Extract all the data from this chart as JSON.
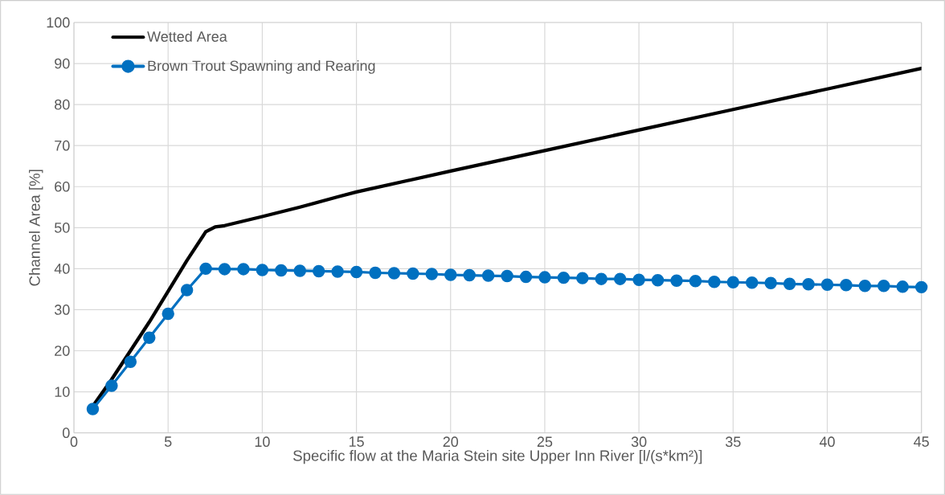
{
  "chart_data": {
    "type": "line",
    "xlabel": "Specific flow at the Maria Stein site Upper Inn River [l/(s*km²)]",
    "ylabel": "Channel Area [%]",
    "xlim": [
      0,
      45
    ],
    "xticks": [
      0,
      5,
      10,
      15,
      20,
      25,
      30,
      35,
      40,
      45
    ],
    "ylim": [
      0,
      100
    ],
    "yticks": [
      0,
      10,
      20,
      30,
      40,
      50,
      60,
      70,
      80,
      90,
      100
    ],
    "grid": true,
    "legend": "top left",
    "line_style": "solid",
    "series": [
      {
        "name": "Wetted Area",
        "color": "#000000",
        "marker": "none",
        "x": [
          1,
          2,
          3,
          4,
          5,
          6,
          7,
          7.5,
          8,
          10,
          12,
          14,
          15,
          20,
          25,
          30,
          35,
          40,
          45
        ],
        "values": [
          6.5,
          13,
          20,
          27,
          34.5,
          42,
          49,
          50.2,
          50.5,
          52.7,
          55,
          57.5,
          58.7,
          63.8,
          68.8,
          73.8,
          78.8,
          83.8,
          88.8
        ]
      },
      {
        "name": "Brown Trout Spawning and Rearing",
        "color": "#0070c0",
        "marker": "circle",
        "x": [
          1,
          2,
          3,
          4,
          5,
          6,
          7,
          8,
          9,
          10,
          11,
          12,
          13,
          14,
          15,
          16,
          17,
          18,
          19,
          20,
          21,
          22,
          23,
          24,
          25,
          26,
          27,
          28,
          29,
          30,
          31,
          32,
          33,
          34,
          35,
          36,
          37,
          38,
          39,
          40,
          41,
          42,
          43,
          44,
          45
        ],
        "values": [
          5.8,
          11.5,
          17.3,
          23.2,
          29.0,
          34.8,
          40.0,
          39.9,
          39.9,
          39.7,
          39.6,
          39.5,
          39.4,
          39.3,
          39.2,
          39.0,
          38.9,
          38.8,
          38.7,
          38.5,
          38.4,
          38.3,
          38.2,
          38.0,
          37.9,
          37.8,
          37.7,
          37.5,
          37.5,
          37.3,
          37.2,
          37.1,
          37.0,
          36.8,
          36.7,
          36.6,
          36.5,
          36.3,
          36.2,
          36.1,
          36.0,
          35.8,
          35.8,
          35.6,
          35.5
        ]
      }
    ]
  }
}
